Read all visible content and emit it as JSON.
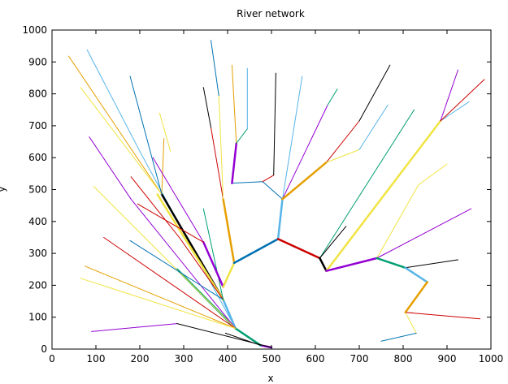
{
  "chart_data": {
    "type": "line",
    "title": "River network",
    "xlabel": "x",
    "ylabel": "y",
    "xlim": [
      0,
      1000
    ],
    "ylim": [
      0,
      1000
    ],
    "xticks": [
      0,
      100,
      200,
      300,
      400,
      500,
      600,
      700,
      800,
      900,
      1000
    ],
    "yticks": [
      0,
      100,
      200,
      300,
      400,
      500,
      600,
      700,
      800,
      900,
      1000
    ],
    "grid": false,
    "series": [
      {
        "color": "#9400d3",
        "width": 2.5,
        "points": [
          [
            475,
            12
          ],
          [
            500,
            5
          ]
        ]
      },
      {
        "color": "#009e73",
        "width": 2.5,
        "points": [
          [
            418,
            65
          ],
          [
            475,
            12
          ]
        ]
      },
      {
        "color": "#56b4e9",
        "width": 2.5,
        "points": [
          [
            390,
            155
          ],
          [
            418,
            65
          ]
        ]
      },
      {
        "color": "#009e73",
        "width": 2.5,
        "points": [
          [
            285,
            250
          ],
          [
            418,
            65
          ]
        ]
      },
      {
        "color": "#56b4e9",
        "width": 1,
        "points": [
          [
            80,
            938
          ],
          [
            200,
            620
          ],
          [
            418,
            65
          ]
        ]
      },
      {
        "color": "#9400d3",
        "width": 1,
        "points": [
          [
            85,
            665
          ],
          [
            180,
            470
          ],
          [
            418,
            65
          ]
        ]
      },
      {
        "color": "#f0e442",
        "width": 1,
        "points": [
          [
            95,
            510
          ],
          [
            418,
            65
          ]
        ]
      },
      {
        "color": "#cc0000",
        "width": 1,
        "points": [
          [
            118,
            350
          ],
          [
            418,
            65
          ]
        ]
      },
      {
        "color": "#e69f00",
        "width": 1,
        "points": [
          [
            75,
            260
          ],
          [
            418,
            65
          ]
        ]
      },
      {
        "color": "#f0e442",
        "width": 1,
        "points": [
          [
            65,
            222
          ],
          [
            418,
            65
          ]
        ]
      },
      {
        "color": "#9400d3",
        "width": 1,
        "points": [
          [
            90,
            55
          ],
          [
            285,
            80
          ]
        ]
      },
      {
        "color": "#000000",
        "width": 1,
        "points": [
          [
            285,
            80
          ],
          [
            500,
            5
          ]
        ]
      },
      {
        "color": "#000000",
        "width": 1,
        "points": [
          [
            395,
            50
          ],
          [
            475,
            12
          ]
        ]
      },
      {
        "color": "#000000",
        "width": 2.5,
        "points": [
          [
            250,
            485
          ],
          [
            390,
            155
          ]
        ]
      },
      {
        "color": "#f0e442",
        "width": 2.5,
        "points": [
          [
            240,
            485
          ],
          [
            390,
            155
          ]
        ]
      },
      {
        "color": "#e69f00",
        "width": 1,
        "points": [
          [
            38,
            918
          ],
          [
            250,
            485
          ]
        ]
      },
      {
        "color": "#f0e442",
        "width": 1,
        "points": [
          [
            65,
            820
          ],
          [
            250,
            485
          ]
        ]
      },
      {
        "color": "#e69f00",
        "width": 1,
        "points": [
          [
            255,
            660
          ],
          [
            250,
            485
          ]
        ]
      },
      {
        "color": "#0072b2",
        "width": 1,
        "points": [
          [
            178,
            855
          ],
          [
            250,
            485
          ]
        ]
      },
      {
        "color": "#cc0000",
        "width": 1,
        "points": [
          [
            180,
            540
          ],
          [
            290,
            350
          ],
          [
            390,
            155
          ]
        ]
      },
      {
        "color": "#0072b2",
        "width": 1,
        "points": [
          [
            178,
            340
          ],
          [
            390,
            155
          ]
        ]
      },
      {
        "color": "#009e73",
        "width": 1,
        "points": [
          [
            345,
            440
          ],
          [
            390,
            155
          ]
        ]
      },
      {
        "color": "#f0e442",
        "width": 1,
        "points": [
          [
            245,
            740
          ],
          [
            270,
            620
          ]
        ]
      },
      {
        "color": "#9400d3",
        "width": 2.5,
        "points": [
          [
            345,
            335
          ],
          [
            390,
            195
          ]
        ]
      },
      {
        "color": "#9400d3",
        "width": 1,
        "points": [
          [
            230,
            600
          ],
          [
            345,
            335
          ]
        ]
      },
      {
        "color": "#cc0000",
        "width": 1,
        "points": [
          [
            195,
            455
          ],
          [
            345,
            335
          ]
        ]
      },
      {
        "color": "#f0e442",
        "width": 2.5,
        "points": [
          [
            390,
            195
          ],
          [
            415,
            270
          ]
        ]
      },
      {
        "color": "#e69f00",
        "width": 2.5,
        "points": [
          [
            390,
            470
          ],
          [
            415,
            270
          ]
        ]
      },
      {
        "color": "#cc0000",
        "width": 1,
        "points": [
          [
            362,
            695
          ],
          [
            390,
            470
          ]
        ]
      },
      {
        "color": "#000000",
        "width": 1,
        "points": [
          [
            345,
            820
          ],
          [
            362,
            695
          ]
        ]
      },
      {
        "color": "#f0e442",
        "width": 1,
        "points": [
          [
            380,
            795
          ],
          [
            390,
            470
          ]
        ]
      },
      {
        "color": "#0072b2",
        "width": 1,
        "points": [
          [
            362,
            968
          ],
          [
            380,
            795
          ]
        ]
      },
      {
        "color": "#0072b2",
        "width": 2.5,
        "points": [
          [
            415,
            270
          ],
          [
            515,
            345
          ]
        ]
      },
      {
        "color": "#56b4e9",
        "width": 2.5,
        "points": [
          [
            515,
            345
          ],
          [
            525,
            470
          ]
        ]
      },
      {
        "color": "#0072b2",
        "width": 1,
        "points": [
          [
            410,
            520
          ],
          [
            480,
            525
          ],
          [
            525,
            470
          ]
        ]
      },
      {
        "color": "#9400d3",
        "width": 2.5,
        "points": [
          [
            410,
            520
          ],
          [
            420,
            645
          ]
        ]
      },
      {
        "color": "#e69f00",
        "width": 1,
        "points": [
          [
            410,
            890
          ],
          [
            420,
            645
          ]
        ]
      },
      {
        "color": "#009e73",
        "width": 1,
        "points": [
          [
            420,
            645
          ],
          [
            445,
            690
          ]
        ]
      },
      {
        "color": "#56b4e9",
        "width": 1,
        "points": [
          [
            445,
            880
          ],
          [
            445,
            690
          ]
        ]
      },
      {
        "color": "#cc0000",
        "width": 1,
        "points": [
          [
            480,
            525
          ],
          [
            505,
            545
          ]
        ]
      },
      {
        "color": "#000000",
        "width": 1,
        "points": [
          [
            510,
            865
          ],
          [
            505,
            545
          ]
        ]
      },
      {
        "color": "#56b4e9",
        "width": 1,
        "points": [
          [
            570,
            855
          ],
          [
            525,
            470
          ]
        ]
      },
      {
        "color": "#9400d3",
        "width": 1,
        "points": [
          [
            628,
            765
          ],
          [
            525,
            470
          ]
        ]
      },
      {
        "color": "#009e73",
        "width": 1,
        "points": [
          [
            650,
            815
          ],
          [
            628,
            765
          ]
        ]
      },
      {
        "color": "#e69f00",
        "width": 2.5,
        "points": [
          [
            525,
            470
          ],
          [
            625,
            585
          ]
        ]
      },
      {
        "color": "#cc0000",
        "width": 1,
        "points": [
          [
            625,
            585
          ],
          [
            700,
            715
          ]
        ]
      },
      {
        "color": "#000000",
        "width": 1,
        "points": [
          [
            700,
            715
          ],
          [
            770,
            890
          ]
        ]
      },
      {
        "color": "#f0e442",
        "width": 1,
        "points": [
          [
            625,
            585
          ],
          [
            700,
            625
          ]
        ]
      },
      {
        "color": "#56b4e9",
        "width": 1,
        "points": [
          [
            700,
            625
          ],
          [
            765,
            765
          ]
        ]
      },
      {
        "color": "#cc0000",
        "width": 2.5,
        "points": [
          [
            515,
            345
          ],
          [
            610,
            285
          ]
        ]
      },
      {
        "color": "#000000",
        "width": 2.5,
        "points": [
          [
            610,
            285
          ],
          [
            625,
            245
          ]
        ]
      },
      {
        "color": "#009e73",
        "width": 1,
        "points": [
          [
            610,
            285
          ],
          [
            825,
            750
          ]
        ]
      },
      {
        "color": "#000000",
        "width": 1,
        "points": [
          [
            610,
            285
          ],
          [
            670,
            385
          ]
        ]
      },
      {
        "color": "#f0e442",
        "width": 2.5,
        "points": [
          [
            625,
            245
          ],
          [
            885,
            715
          ]
        ]
      },
      {
        "color": "#9400d3",
        "width": 1,
        "points": [
          [
            885,
            715
          ],
          [
            925,
            875
          ]
        ]
      },
      {
        "color": "#56b4e9",
        "width": 1,
        "points": [
          [
            885,
            715
          ],
          [
            950,
            775
          ]
        ]
      },
      {
        "color": "#cc0000",
        "width": 1,
        "points": [
          [
            885,
            715
          ],
          [
            985,
            845
          ]
        ]
      },
      {
        "color": "#f0e442",
        "width": 1,
        "points": [
          [
            740,
            285
          ],
          [
            835,
            515
          ],
          [
            900,
            580
          ]
        ]
      },
      {
        "color": "#9400d3",
        "width": 1,
        "points": [
          [
            740,
            285
          ],
          [
            955,
            440
          ]
        ]
      },
      {
        "color": "#9400d3",
        "width": 2.5,
        "points": [
          [
            625,
            245
          ],
          [
            740,
            285
          ]
        ]
      },
      {
        "color": "#009e73",
        "width": 2.5,
        "points": [
          [
            740,
            285
          ],
          [
            805,
            255
          ]
        ]
      },
      {
        "color": "#000000",
        "width": 1,
        "points": [
          [
            805,
            255
          ],
          [
            925,
            280
          ]
        ]
      },
      {
        "color": "#56b4e9",
        "width": 2.5,
        "points": [
          [
            805,
            255
          ],
          [
            855,
            210
          ]
        ]
      },
      {
        "color": "#e69f00",
        "width": 2.5,
        "points": [
          [
            805,
            115
          ],
          [
            855,
            210
          ]
        ]
      },
      {
        "color": "#cc0000",
        "width": 1,
        "points": [
          [
            805,
            115
          ],
          [
            975,
            95
          ]
        ]
      },
      {
        "color": "#f0e442",
        "width": 1,
        "points": [
          [
            805,
            115
          ],
          [
            830,
            50
          ]
        ]
      },
      {
        "color": "#0072b2",
        "width": 1,
        "points": [
          [
            750,
            25
          ],
          [
            830,
            50
          ]
        ]
      }
    ]
  }
}
